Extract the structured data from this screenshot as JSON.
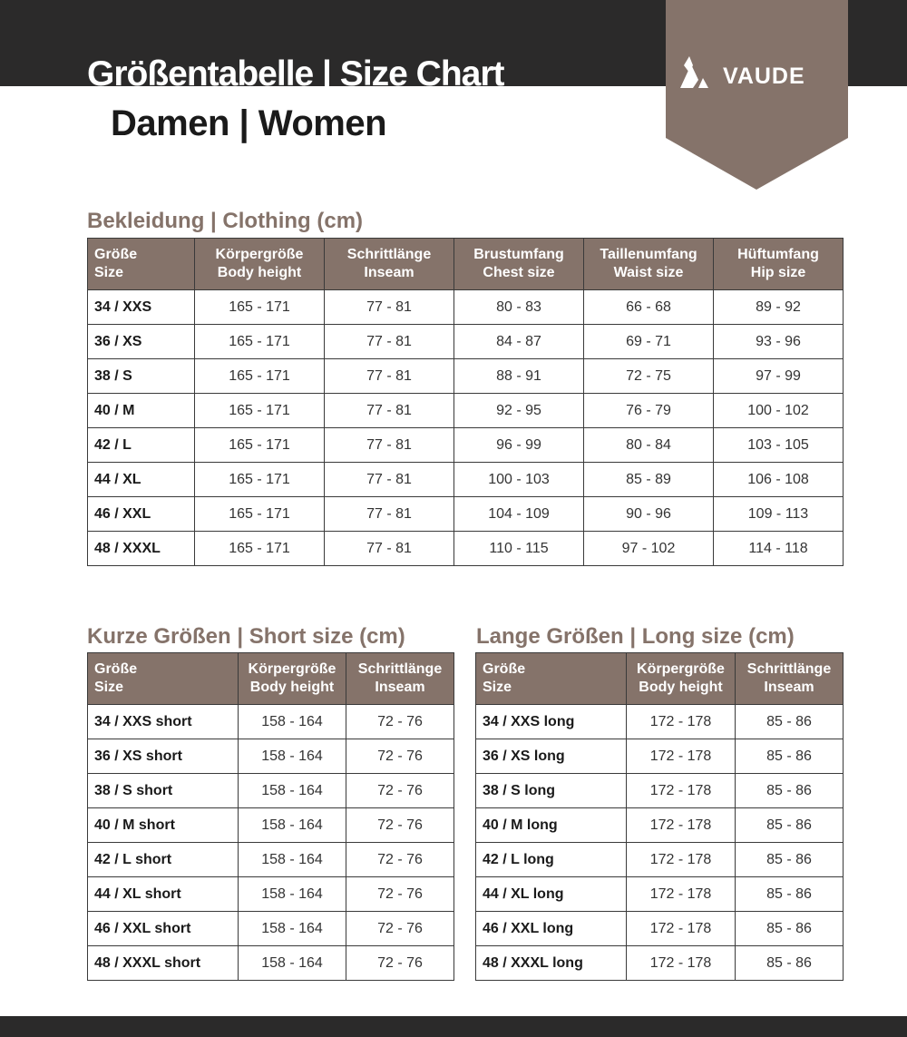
{
  "header": {
    "title": "Größentabelle | Size Chart",
    "subtitle": "Damen | Women",
    "logo_text": "VAUDE",
    "colors": {
      "dark": "#2b2a2a",
      "brand": "#85736a"
    }
  },
  "clothing": {
    "title": "Bekleidung | Clothing (cm)",
    "columns": [
      [
        "Größe",
        "Size"
      ],
      [
        "Körpergröße",
        "Body height"
      ],
      [
        "Schrittlänge",
        "Inseam"
      ],
      [
        "Brustumfang",
        "Chest size"
      ],
      [
        "Taillenumfang",
        "Waist size"
      ],
      [
        "Hüftumfang",
        "Hip size"
      ]
    ],
    "rows": [
      [
        "34 / XXS",
        "165 - 171",
        "77 - 81",
        "80 - 83",
        "66 - 68",
        "89 - 92"
      ],
      [
        "36 / XS",
        "165 - 171",
        "77 - 81",
        "84 - 87",
        "69 - 71",
        "93 - 96"
      ],
      [
        "38 / S",
        "165 - 171",
        "77 - 81",
        "88 - 91",
        "72 - 75",
        "97 - 99"
      ],
      [
        "40 / M",
        "165 - 171",
        "77 - 81",
        "92 - 95",
        "76 - 79",
        "100 - 102"
      ],
      [
        "42 / L",
        "165 - 171",
        "77 - 81",
        "96 - 99",
        "80 - 84",
        "103 - 105"
      ],
      [
        "44 / XL",
        "165 - 171",
        "77 - 81",
        "100 - 103",
        "85 - 89",
        "106 - 108"
      ],
      [
        "46 / XXL",
        "165 - 171",
        "77 - 81",
        "104 - 109",
        "90 - 96",
        "109 - 113"
      ],
      [
        "48 / XXXL",
        "165 - 171",
        "77 - 81",
        "110 - 115",
        "97 - 102",
        "114 - 118"
      ]
    ]
  },
  "short": {
    "title": "Kurze Größen | Short size (cm)",
    "columns": [
      [
        "Größe",
        "Size"
      ],
      [
        "Körpergröße",
        "Body height"
      ],
      [
        "Schrittlänge",
        "Inseam"
      ]
    ],
    "rows": [
      [
        "34 / XXS short",
        "158 - 164",
        "72 - 76"
      ],
      [
        "36 / XS short",
        "158 - 164",
        "72 - 76"
      ],
      [
        "38 / S short",
        "158 - 164",
        "72 - 76"
      ],
      [
        "40 / M short",
        "158 - 164",
        "72 - 76"
      ],
      [
        "42 / L short",
        "158 - 164",
        "72 - 76"
      ],
      [
        "44 / XL short",
        "158 - 164",
        "72 - 76"
      ],
      [
        "46 / XXL short",
        "158 - 164",
        "72 - 76"
      ],
      [
        "48 / XXXL short",
        "158 - 164",
        "72 - 76"
      ]
    ]
  },
  "long": {
    "title": "Lange Größen | Long size (cm)",
    "columns": [
      [
        "Größe",
        "Size"
      ],
      [
        "Körpergröße",
        "Body height"
      ],
      [
        "Schrittlänge",
        "Inseam"
      ]
    ],
    "rows": [
      [
        "34 / XXS long",
        "172 - 178",
        "85 - 86"
      ],
      [
        "36 / XS long",
        "172 - 178",
        "85 - 86"
      ],
      [
        "38 / S long",
        "172 - 178",
        "85 - 86"
      ],
      [
        "40 / M long",
        "172 - 178",
        "85 - 86"
      ],
      [
        "42 / L long",
        "172 - 178",
        "85 - 86"
      ],
      [
        "44 / XL long",
        "172 - 178",
        "85 - 86"
      ],
      [
        "46 / XXL long",
        "172 - 178",
        "85 - 86"
      ],
      [
        "48 / XXXL long",
        "172 - 178",
        "85 - 86"
      ]
    ]
  }
}
